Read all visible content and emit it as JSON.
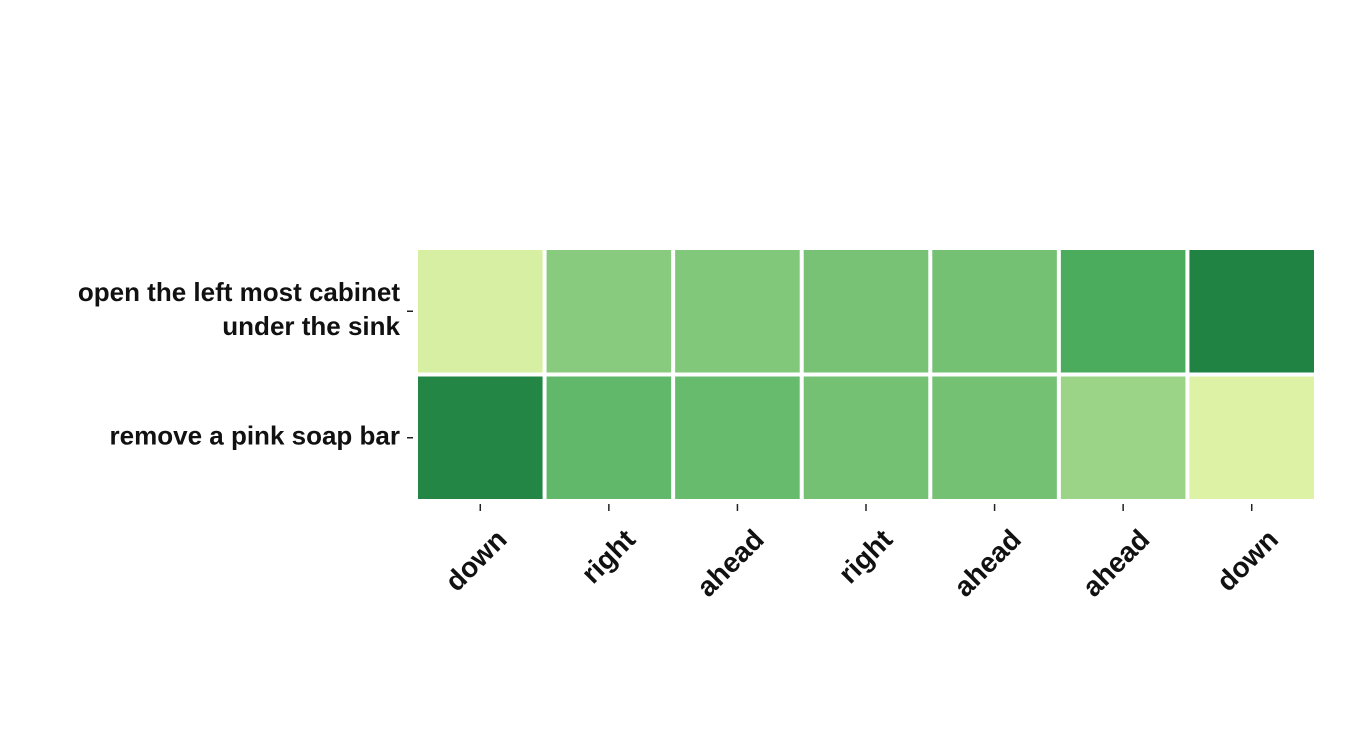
{
  "chart_data": {
    "type": "heatmap",
    "title": "",
    "xlabel": "",
    "ylabel": "",
    "grid": false,
    "colorscale": "yellow-green",
    "x_categories": [
      "down",
      "right",
      "ahead",
      "right",
      "ahead",
      "ahead",
      "down"
    ],
    "y_categories": [
      [
        "open the left most cabinet",
        "under the sink"
      ],
      [
        "remove a pink soap bar"
      ]
    ],
    "values": [
      [
        0.08,
        0.45,
        0.48,
        0.52,
        0.53,
        0.68,
        0.95
      ],
      [
        0.92,
        0.6,
        0.58,
        0.53,
        0.53,
        0.38,
        0.05
      ]
    ]
  }
}
